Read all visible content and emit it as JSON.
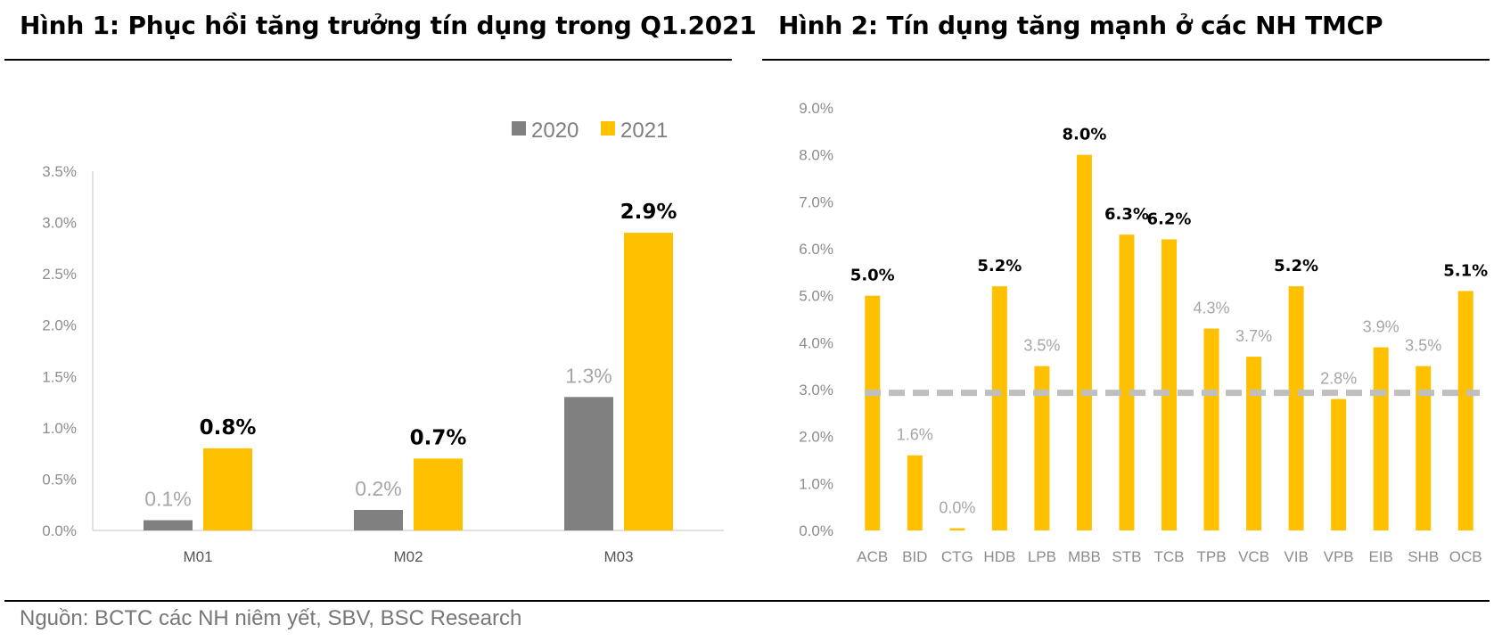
{
  "page": {
    "title1": "Hình 1: Phục hồi tăng trưởng tín dụng trong Q1.2021",
    "title2": "Hình 2: Tín dụng tăng mạnh ở các NH TMCP",
    "source": "Nguồn: BCTC các NH niêm yết, SBV, BSC Research"
  },
  "chart_data": [
    {
      "type": "bar",
      "title": "Hình 1: Phục hồi tăng trưởng tín dụng trong Q1.2021",
      "categories": [
        "M01",
        "M02",
        "M03"
      ],
      "series": [
        {
          "name": "2020",
          "values": [
            0.1,
            0.2,
            1.3
          ],
          "labels": [
            "0.1%",
            "0.2%",
            "1.3%"
          ],
          "color": "#808080",
          "label_bold": false
        },
        {
          "name": "2021",
          "values": [
            0.8,
            0.7,
            2.9
          ],
          "labels": [
            "0.8%",
            "0.7%",
            "2.9%"
          ],
          "color": "#ffc000",
          "label_bold": true
        }
      ],
      "y_ticks": [
        "0.0%",
        "0.5%",
        "1.0%",
        "1.5%",
        "2.0%",
        "2.5%",
        "3.0%",
        "3.5%"
      ],
      "ylim": [
        0,
        3.5
      ],
      "xlabel": "",
      "ylabel": "",
      "grid": false,
      "legend": "top-right"
    },
    {
      "type": "bar",
      "title": "Hình 2: Tín dụng tăng mạnh ở các NH TMCP",
      "categories": [
        "ACB",
        "BID",
        "CTG",
        "HDB",
        "LPB",
        "MBB",
        "STB",
        "TCB",
        "TPB",
        "VCB",
        "VIB",
        "VPB",
        "EIB",
        "SHB",
        "OCB"
      ],
      "values": [
        5.0,
        1.6,
        0.0,
        5.2,
        3.5,
        8.0,
        6.3,
        6.2,
        4.3,
        3.7,
        5.2,
        2.8,
        3.9,
        3.5,
        5.1
      ],
      "labels": [
        "5.0%",
        "1.6%",
        "0.0%",
        "5.2%",
        "3.5%",
        "8.0%",
        "6.3%",
        "6.2%",
        "4.3%",
        "3.7%",
        "5.2%",
        "2.8%",
        "3.9%",
        "3.5%",
        "5.1%"
      ],
      "highlighted": [
        true,
        false,
        false,
        true,
        false,
        true,
        true,
        true,
        false,
        false,
        true,
        false,
        false,
        false,
        true
      ],
      "bar_color": "#ffc000",
      "reference_line": {
        "value": 2.93,
        "color": "#bfbfbf",
        "style": "dashed"
      },
      "y_ticks": [
        "0.0%",
        "1.0%",
        "2.0%",
        "3.0%",
        "4.0%",
        "5.0%",
        "6.0%",
        "7.0%",
        "8.0%",
        "9.0%"
      ],
      "ylim": [
        0,
        9
      ],
      "xlabel": "",
      "ylabel": "",
      "grid": false,
      "legend": "none"
    }
  ]
}
